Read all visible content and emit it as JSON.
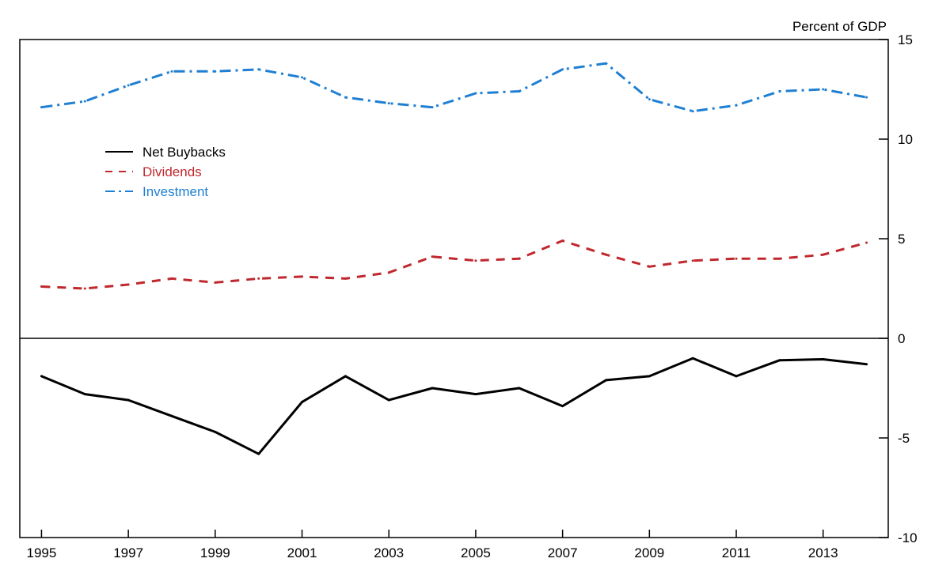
{
  "chart_data": {
    "type": "line",
    "y_unit_label": "Percent of GDP",
    "x": [
      1995,
      1996,
      1997,
      1998,
      1999,
      2000,
      2001,
      2002,
      2003,
      2004,
      2005,
      2006,
      2007,
      2008,
      2009,
      2010,
      2011,
      2012,
      2013,
      2014
    ],
    "x_tick_labels": [
      "1995",
      "1997",
      "1999",
      "2001",
      "2003",
      "2005",
      "2007",
      "2009",
      "2011",
      "2013"
    ],
    "xlim": [
      1994.5,
      2014.5
    ],
    "ylim": [
      -10,
      15
    ],
    "y_ticks": [
      -10,
      -5,
      0,
      5,
      10,
      15
    ],
    "y_axis_side": "right",
    "grid": false,
    "legend_position": "upper-left",
    "series": [
      {
        "name": "Net Buybacks",
        "color": "#000000",
        "line_style": "solid",
        "values": [
          -1.9,
          -2.8,
          -3.1,
          -3.9,
          -4.7,
          -5.8,
          -3.2,
          -1.9,
          -3.1,
          -2.5,
          -2.8,
          -2.5,
          -3.4,
          -2.1,
          -1.9,
          -1.0,
          -1.9,
          -1.1,
          -1.05,
          -1.3
        ]
      },
      {
        "name": "Dividends",
        "color": "#c0282d",
        "line_style": "dashed",
        "values": [
          2.6,
          2.5,
          2.7,
          3.0,
          2.8,
          3.0,
          3.1,
          3.0,
          3.3,
          4.1,
          3.9,
          4.0,
          4.9,
          4.2,
          3.6,
          3.9,
          4.0,
          4.0,
          4.2,
          4.8
        ]
      },
      {
        "name": "Investment",
        "color": "#1f7fd2",
        "line_style": "dashdot",
        "values": [
          11.6,
          11.9,
          12.7,
          13.4,
          13.4,
          13.5,
          13.1,
          12.1,
          11.8,
          11.6,
          12.3,
          12.4,
          13.5,
          13.8,
          12.0,
          11.4,
          11.7,
          12.4,
          12.5,
          12.1
        ]
      }
    ]
  }
}
